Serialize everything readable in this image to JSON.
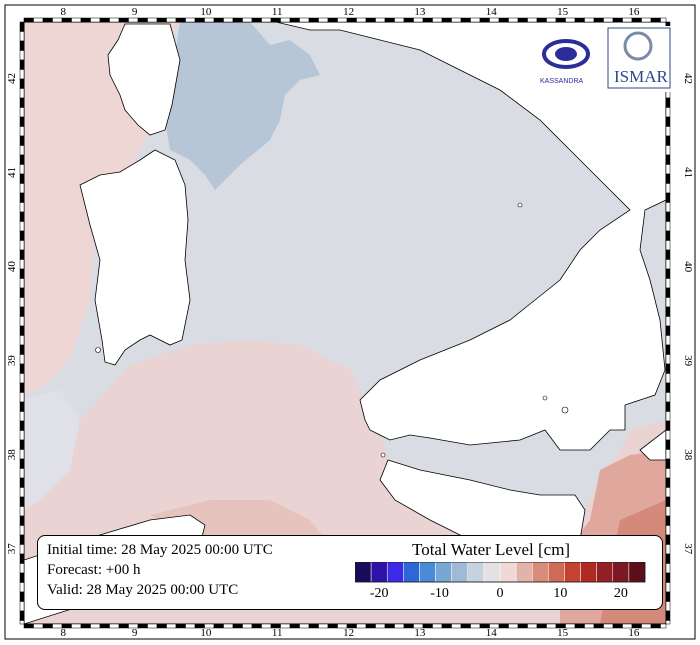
{
  "map": {
    "lon_labels": [
      "8",
      "9",
      "10",
      "11",
      "12",
      "13",
      "14",
      "15",
      "16"
    ],
    "lat_labels": [
      "37",
      "38",
      "39",
      "40",
      "41",
      "42"
    ],
    "lon_range": [
      7.45,
      16.45
    ],
    "lat_range": [
      36.2,
      42.6
    ]
  },
  "info": {
    "initial": "Initial time: 28 May 2025 00:00 UTC",
    "forecast": "Forecast: +00 h",
    "valid": "Valid: 28 May 2025 00:00 UTC"
  },
  "colorbar": {
    "title": "Total Water Level [cm]",
    "tick_labels": [
      "-20",
      "-10",
      "0",
      "10",
      "20"
    ],
    "tick_values": [
      -20,
      -10,
      0,
      10,
      20
    ],
    "range": [
      -24,
      24
    ],
    "colors": [
      "#1a0a5c",
      "#2f12a8",
      "#3b2be8",
      "#2e66d8",
      "#4a8ad6",
      "#79a7d4",
      "#a0bad5",
      "#c7d2de",
      "#e4e1e4",
      "#eed9d6",
      "#e3b2a8",
      "#d88c7c",
      "#cf6a56",
      "#c4432f",
      "#b02a22",
      "#941f24",
      "#7c1724",
      "#5c0e1a"
    ]
  },
  "logos": {
    "left": "KASSANDRA",
    "right": "ISMAR"
  },
  "colors": {
    "land": "#ffffff",
    "neutral_sea": "#d9dde3",
    "negative_sea": "#b6c6d6",
    "positive_sea": "#edd6d4"
  }
}
